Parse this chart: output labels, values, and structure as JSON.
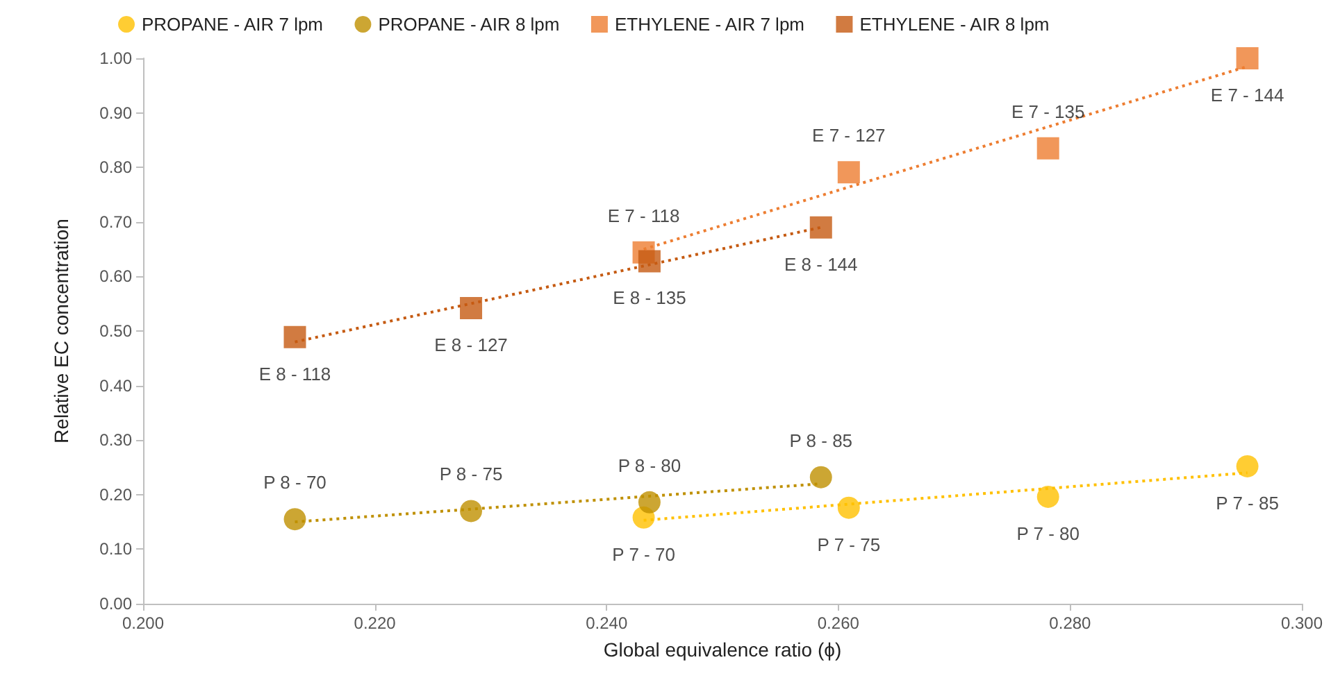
{
  "chart_data": {
    "type": "scatter",
    "xlabel": "Global equivalence ratio (ϕ)",
    "ylabel": "Relative EC concentration",
    "xlim": [
      0.2,
      0.3
    ],
    "xticks": [
      {
        "value": 0.2,
        "label": "0.200"
      },
      {
        "value": 0.22,
        "label": "0.220"
      },
      {
        "value": 0.24,
        "label": "0.240"
      },
      {
        "value": 0.26,
        "label": "0.260"
      },
      {
        "value": 0.28,
        "label": "0.280"
      },
      {
        "value": 0.3,
        "label": "0.300"
      }
    ],
    "ylim": [
      0,
      1
    ],
    "yticks": [
      {
        "value": 0,
        "label": "0.00"
      },
      {
        "value": 0.1,
        "label": "0.10"
      },
      {
        "value": 0.2,
        "label": "0.20"
      },
      {
        "value": 0.3,
        "label": "0.30"
      },
      {
        "value": 0.4,
        "label": "0.40"
      },
      {
        "value": 0.5,
        "label": "0.50"
      },
      {
        "value": 0.6,
        "label": "0.60"
      },
      {
        "value": 0.7,
        "label": "0.70"
      },
      {
        "value": 0.8,
        "label": "0.80"
      },
      {
        "value": 0.9,
        "label": "0.90"
      },
      {
        "value": 1,
        "label": "1.00"
      }
    ],
    "grid": false,
    "legend": "top",
    "series": [
      {
        "name": "PROPANE - AIR 7 lpm",
        "marker": "circle",
        "color": "#ffc000",
        "x": [
          0.2432,
          0.2609,
          0.2781,
          0.2953
        ],
        "values": [
          0.158,
          0.176,
          0.196,
          0.252
        ],
        "value_labels": [
          "P 7 - 70",
          "P 7 - 75",
          "P 7 - 80",
          "P 7 - 85"
        ]
      },
      {
        "name": "PROPANE - AIR 8 lpm",
        "marker": "circle",
        "color": "#bf9000",
        "x": [
          0.2131,
          0.2283,
          0.2437,
          0.2585
        ],
        "values": [
          0.155,
          0.17,
          0.186,
          0.232
        ],
        "value_labels": [
          "P 8 - 70",
          "P 8 - 75",
          "P 8 - 80",
          "P 8 - 85"
        ]
      },
      {
        "name": "ETHYLENE - AIR 7 lpm",
        "marker": "square",
        "color": "#ed7d31",
        "x": [
          0.2432,
          0.2609,
          0.2781,
          0.2953
        ],
        "values": [
          0.644,
          0.791,
          0.835,
          1.0
        ],
        "value_labels": [
          "E 7 - 118",
          "E 7 - 127",
          "E 7 - 135",
          "E 7 - 144"
        ]
      },
      {
        "name": "ETHYLENE - AIR 8 lpm",
        "marker": "square",
        "color": "#c55a11",
        "x": [
          0.2131,
          0.2283,
          0.2437,
          0.2585
        ],
        "values": [
          0.489,
          0.542,
          0.628,
          0.69
        ],
        "value_labels": [
          "E 8 - 118",
          "E 8 - 127",
          "E 8 - 135",
          "E 8 - 144"
        ]
      },
      {
        "type": "line",
        "line_style": "dotted",
        "marker": "none",
        "color": "#ffc000",
        "x": [
          0.2432,
          0.2953
        ],
        "values": [
          0.153,
          0.24
        ]
      },
      {
        "type": "line",
        "line_style": "dotted",
        "marker": "none",
        "color": "#bf9000",
        "x": [
          0.2131,
          0.2585
        ],
        "values": [
          0.15,
          0.22
        ]
      },
      {
        "type": "line",
        "line_style": "dotted",
        "marker": "none",
        "color": "#ed7d31",
        "x": [
          0.2432,
          0.2953
        ],
        "values": [
          0.65,
          0.985
        ]
      },
      {
        "type": "line",
        "line_style": "dotted",
        "marker": "none",
        "color": "#c55a11",
        "x": [
          0.2131,
          0.2585
        ],
        "values": [
          0.48,
          0.69
        ]
      }
    ]
  }
}
